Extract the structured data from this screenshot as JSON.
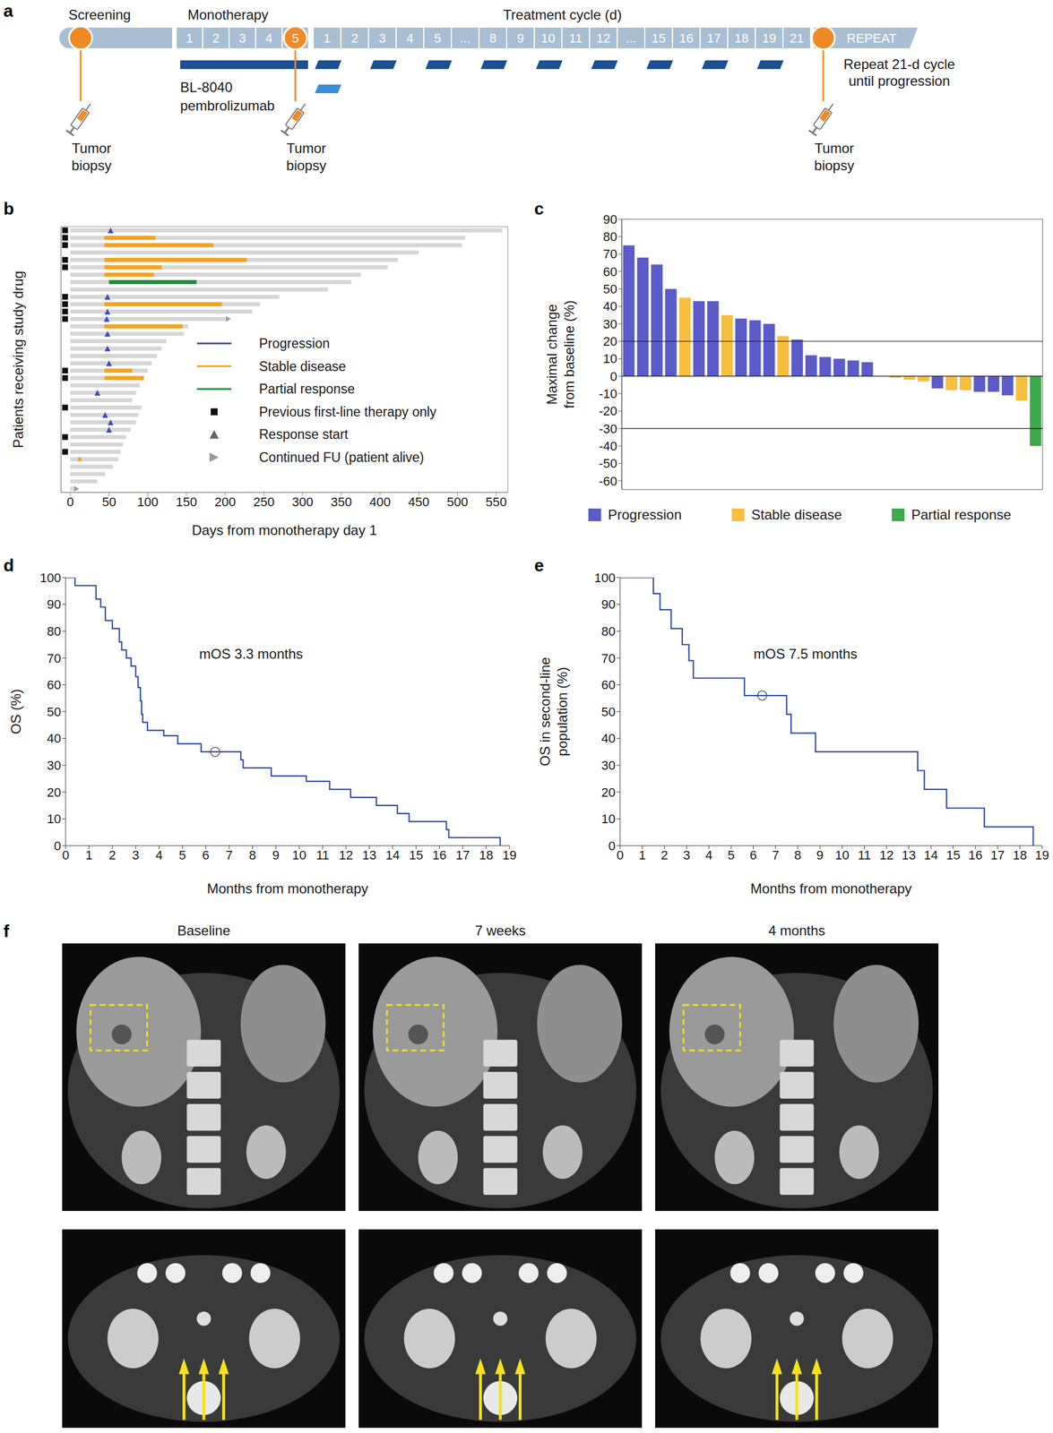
{
  "diagram_a": {
    "panel": "a",
    "phases": [
      "Screening",
      "Monotherapy",
      "Treatment cycle (d)"
    ],
    "monotherapy_days": [
      "1",
      "2",
      "3",
      "4",
      "5"
    ],
    "cycle_days": [
      "1",
      "2",
      "3",
      "4",
      "5",
      "...",
      "8",
      "9",
      "10",
      "11",
      "12",
      "...",
      "15",
      "16",
      "17",
      "18",
      "19",
      "21"
    ],
    "repeat": "REPEAT",
    "drugs": [
      {
        "name": "BL-8040",
        "color": "#1d4f91"
      },
      {
        "name": "pembrolizumab",
        "color": "#3a8fd6"
      }
    ],
    "bl8040_cycle_days": [
      1,
      3,
      5,
      8,
      10,
      12,
      15,
      17,
      19
    ],
    "pembrolizumab_cycle_days": [
      1
    ],
    "repeat_note": "Repeat 21-d cycle until progression",
    "biopsy_label": "Tumor biopsy"
  },
  "chart_data": [
    {
      "panel": "b",
      "type": "swimmer",
      "xlabel": "Days from monotherapy day 1",
      "ylabel": "Patients receiving study drug",
      "xlim": [
        -12,
        565
      ],
      "xticks": [
        0,
        50,
        100,
        150,
        200,
        250,
        300,
        350,
        400,
        450,
        500,
        550
      ],
      "tick_labels": "x",
      "legend": "right",
      "legend_entries": [
        {
          "name": "Progression",
          "color": "#3a44a8",
          "marker": "line"
        },
        {
          "name": "Stable disease",
          "color": "#f5a21c",
          "marker": "line"
        },
        {
          "name": "Partial response",
          "color": "#1f8a3a",
          "marker": "line"
        },
        {
          "name": "Previous first-line therapy only",
          "color": "#111111",
          "marker": "square"
        },
        {
          "name": "Response start",
          "color": "#666666",
          "marker": "triangle"
        },
        {
          "name": "Continued FU (patient alive)",
          "color": "#999999",
          "marker": "arrow"
        }
      ],
      "patients": [
        {
          "days": 558,
          "first_line_only": true,
          "response_start": 52
        },
        {
          "days": 510,
          "first_line_only": true,
          "segment": {
            "status": "Stable disease",
            "start": 44,
            "end": 110
          }
        },
        {
          "days": 506,
          "first_line_only": true,
          "segment": {
            "status": "Stable disease",
            "start": 44,
            "end": 185
          }
        },
        {
          "days": 450,
          "first_line_only": false
        },
        {
          "days": 423,
          "first_line_only": true,
          "segment": {
            "status": "Stable disease",
            "start": 44,
            "end": 228
          }
        },
        {
          "days": 410,
          "first_line_only": true,
          "segment": {
            "status": "Stable disease",
            "start": 44,
            "end": 118
          }
        },
        {
          "days": 375,
          "first_line_only": false,
          "segment": {
            "status": "Stable disease",
            "start": 44,
            "end": 108
          }
        },
        {
          "days": 363,
          "first_line_only": false,
          "segment": {
            "status": "Partial response",
            "start": 50,
            "end": 163
          }
        },
        {
          "days": 333,
          "first_line_only": false
        },
        {
          "days": 270,
          "first_line_only": true,
          "response_start": 48
        },
        {
          "days": 245,
          "first_line_only": true,
          "segment": {
            "status": "Stable disease",
            "start": 44,
            "end": 196
          }
        },
        {
          "days": 235,
          "first_line_only": true,
          "response_start": 48
        },
        {
          "days": 200,
          "first_line_only": true,
          "response_start": 47,
          "alive": true
        },
        {
          "days": 152,
          "first_line_only": false,
          "segment": {
            "status": "Stable disease",
            "start": 44,
            "end": 145
          }
        },
        {
          "days": 147,
          "first_line_only": false,
          "response_start": 48
        },
        {
          "days": 124,
          "first_line_only": false
        },
        {
          "days": 118,
          "first_line_only": false,
          "response_start": 48
        },
        {
          "days": 112,
          "first_line_only": false
        },
        {
          "days": 105,
          "first_line_only": false,
          "response_start": 50
        },
        {
          "days": 100,
          "first_line_only": true,
          "segment": {
            "status": "Stable disease",
            "start": 44,
            "end": 80
          }
        },
        {
          "days": 95,
          "first_line_only": true,
          "segment": {
            "status": "Stable disease",
            "start": 44,
            "end": 95
          }
        },
        {
          "days": 90,
          "first_line_only": false
        },
        {
          "days": 85,
          "first_line_only": false,
          "response_start": 35
        },
        {
          "days": 80,
          "first_line_only": false
        },
        {
          "days": 92,
          "first_line_only": true
        },
        {
          "days": 88,
          "first_line_only": false,
          "response_start": 45
        },
        {
          "days": 85,
          "first_line_only": false,
          "response_start": 52
        },
        {
          "days": 78,
          "first_line_only": false,
          "response_start": 50
        },
        {
          "days": 72,
          "first_line_only": true
        },
        {
          "days": 68,
          "first_line_only": false
        },
        {
          "days": 65,
          "first_line_only": true
        },
        {
          "days": 62,
          "first_line_only": false,
          "segment": {
            "status": "Stable disease",
            "start": 10,
            "end": 14
          }
        },
        {
          "days": 55,
          "first_line_only": false
        },
        {
          "days": 45,
          "first_line_only": false
        },
        {
          "days": 35,
          "first_line_only": false
        },
        {
          "days": 4,
          "first_line_only": false,
          "alive": true
        }
      ]
    },
    {
      "panel": "c",
      "type": "bar",
      "ylabel": "Maximal change from baseline (%)",
      "ylim": [
        -65,
        90
      ],
      "yticks": [
        -60,
        -50,
        -40,
        -30,
        -20,
        -10,
        0,
        10,
        20,
        30,
        40,
        50,
        60,
        70,
        80,
        90
      ],
      "tick_labels": "y",
      "legend": "bottom",
      "values": [
        75,
        68,
        64,
        50,
        45,
        43,
        43,
        35,
        33,
        32,
        30,
        23,
        21,
        12,
        11,
        10,
        9,
        8,
        0,
        -1,
        -2,
        -3,
        -7,
        -8,
        -8,
        -9,
        -9,
        -11,
        -14,
        -40
      ],
      "status": [
        "Progression",
        "Progression",
        "Progression",
        "Progression",
        "Stable disease",
        "Progression",
        "Progression",
        "Stable disease",
        "Progression",
        "Progression",
        "Progression",
        "Stable disease",
        "Progression",
        "Progression",
        "Progression",
        "Progression",
        "Progression",
        "Progression",
        "Stable disease",
        "Stable disease",
        "Stable disease",
        "Stable disease",
        "Progression",
        "Stable disease",
        "Stable disease",
        "Progression",
        "Progression",
        "Progression",
        "Stable disease",
        "Partial response"
      ],
      "groups": [
        {
          "name": "Progression",
          "color": "#5b5bc9"
        },
        {
          "name": "Stable disease",
          "color": "#f7be3d"
        },
        {
          "name": "Partial response",
          "color": "#3daa4c"
        }
      ],
      "reference_lines": [
        20,
        0,
        -30
      ]
    },
    {
      "panel": "d",
      "type": "line",
      "line_style": "step",
      "color": "#2b45a6",
      "xlabel": "Months from monotherapy",
      "ylabel": "OS (%)",
      "xlim": [
        0,
        19
      ],
      "xticks": [
        0,
        1,
        2,
        3,
        4,
        5,
        6,
        7,
        8,
        9,
        10,
        11,
        12,
        13,
        14,
        15,
        16,
        17,
        18,
        19
      ],
      "ylim": [
        0,
        100
      ],
      "yticks": [
        0,
        10,
        20,
        30,
        40,
        50,
        60,
        70,
        80,
        90,
        100
      ],
      "x": [
        0,
        0.4,
        1.3,
        1.5,
        1.7,
        2.0,
        2.3,
        2.4,
        2.6,
        2.8,
        3.0,
        3.1,
        3.2,
        3.25,
        3.3,
        3.5,
        4.2,
        4.8,
        5.8,
        7.5,
        7.6,
        8.8,
        10.3,
        11.3,
        12.2,
        13.3,
        14.2,
        14.7,
        16.3,
        16.4,
        18.6
      ],
      "values": [
        100,
        97,
        92,
        89,
        84,
        81,
        76,
        73,
        70,
        67,
        63,
        59,
        54,
        49,
        46,
        43,
        41,
        38,
        35,
        32,
        29,
        26,
        24,
        21,
        18,
        15,
        12,
        9,
        6,
        3,
        0
      ],
      "censored": [
        {
          "x": 6.4,
          "y": 35
        }
      ],
      "annotations": [
        "mOS 3.3 months"
      ]
    },
    {
      "panel": "e",
      "type": "line",
      "line_style": "step",
      "color": "#2b45a6",
      "xlabel": "Months from monotherapy",
      "ylabel": "OS in second-line population (%)",
      "xlim": [
        0,
        19
      ],
      "xticks": [
        0,
        1,
        2,
        3,
        4,
        5,
        6,
        7,
        8,
        9,
        10,
        11,
        12,
        13,
        14,
        15,
        16,
        17,
        18,
        19
      ],
      "ylim": [
        0,
        100
      ],
      "yticks": [
        0,
        10,
        20,
        30,
        40,
        50,
        60,
        70,
        80,
        90,
        100
      ],
      "x": [
        0,
        1.5,
        1.8,
        2.3,
        2.8,
        3.1,
        3.3,
        5.6,
        7.5,
        7.7,
        8.8,
        13.4,
        13.7,
        14.7,
        16.4,
        18.6
      ],
      "values": [
        100,
        94,
        88,
        81,
        75,
        69,
        62.5,
        56,
        49,
        42,
        35,
        28,
        21,
        14,
        7,
        0
      ],
      "censored": [
        {
          "x": 6.4,
          "y": 56
        }
      ],
      "annotations": [
        "mOS 7.5 months"
      ]
    }
  ],
  "images_f": {
    "panel": "f",
    "columns": [
      "Baseline",
      "7 weeks",
      "4 months"
    ]
  }
}
